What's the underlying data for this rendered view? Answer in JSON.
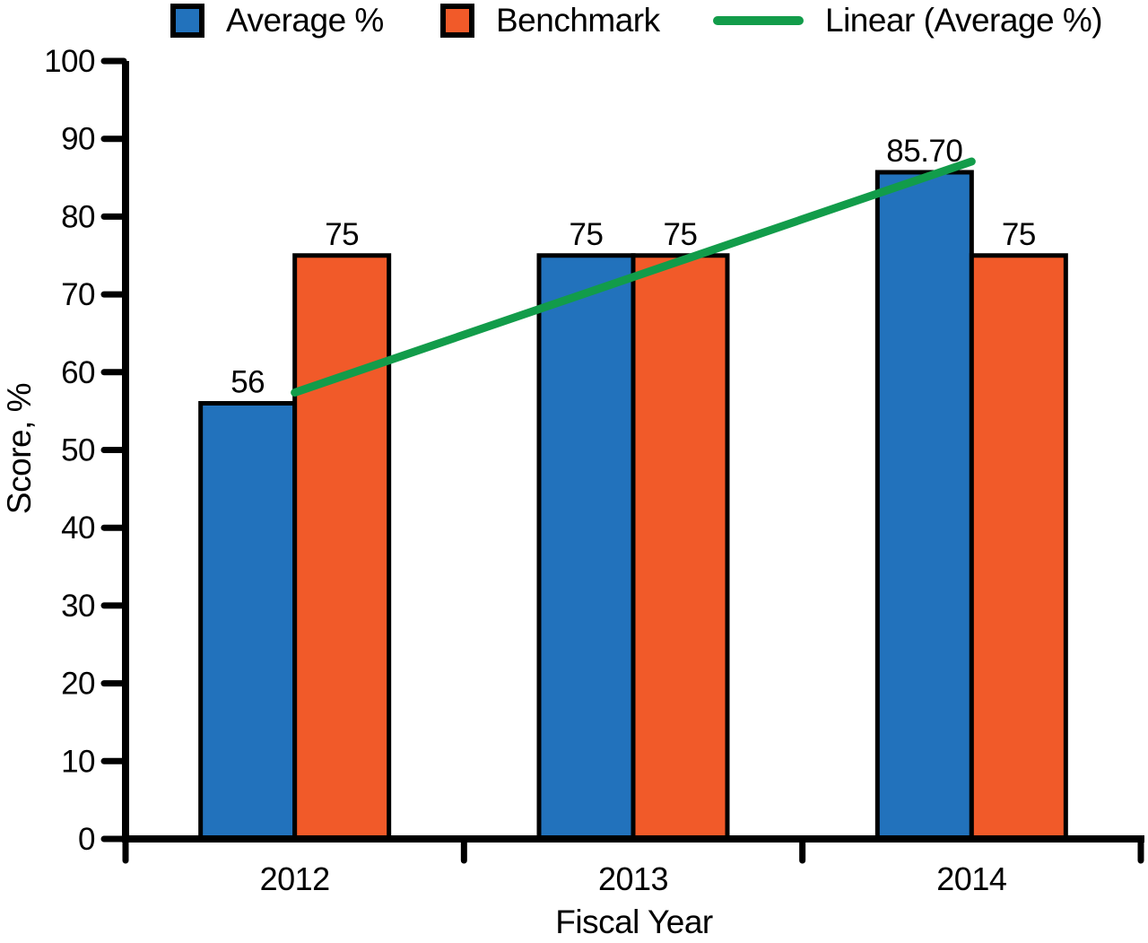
{
  "chart_data": {
    "type": "bar",
    "title": "",
    "xlabel": "Fiscal Year",
    "ylabel": "Score, %",
    "categories": [
      "2012",
      "2013",
      "2014"
    ],
    "series": [
      {
        "name": "Average %",
        "color": "#2272BC",
        "values": [
          56,
          75,
          85.7
        ],
        "labels": [
          "56",
          "75",
          "85.70"
        ]
      },
      {
        "name": "Benchmark",
        "color": "#F15A29",
        "values": [
          75,
          75,
          75
        ],
        "labels": [
          "75",
          "75",
          "75"
        ]
      }
    ],
    "trendline": {
      "name": "Linear (Average %)",
      "color": "#129C4A",
      "basis_series": "Average %"
    },
    "ylim": [
      0,
      100
    ],
    "ytick_step": 10,
    "grid": false,
    "legend_position": "top",
    "bar_outline_color": "#000000",
    "axis_color": "#000000"
  }
}
